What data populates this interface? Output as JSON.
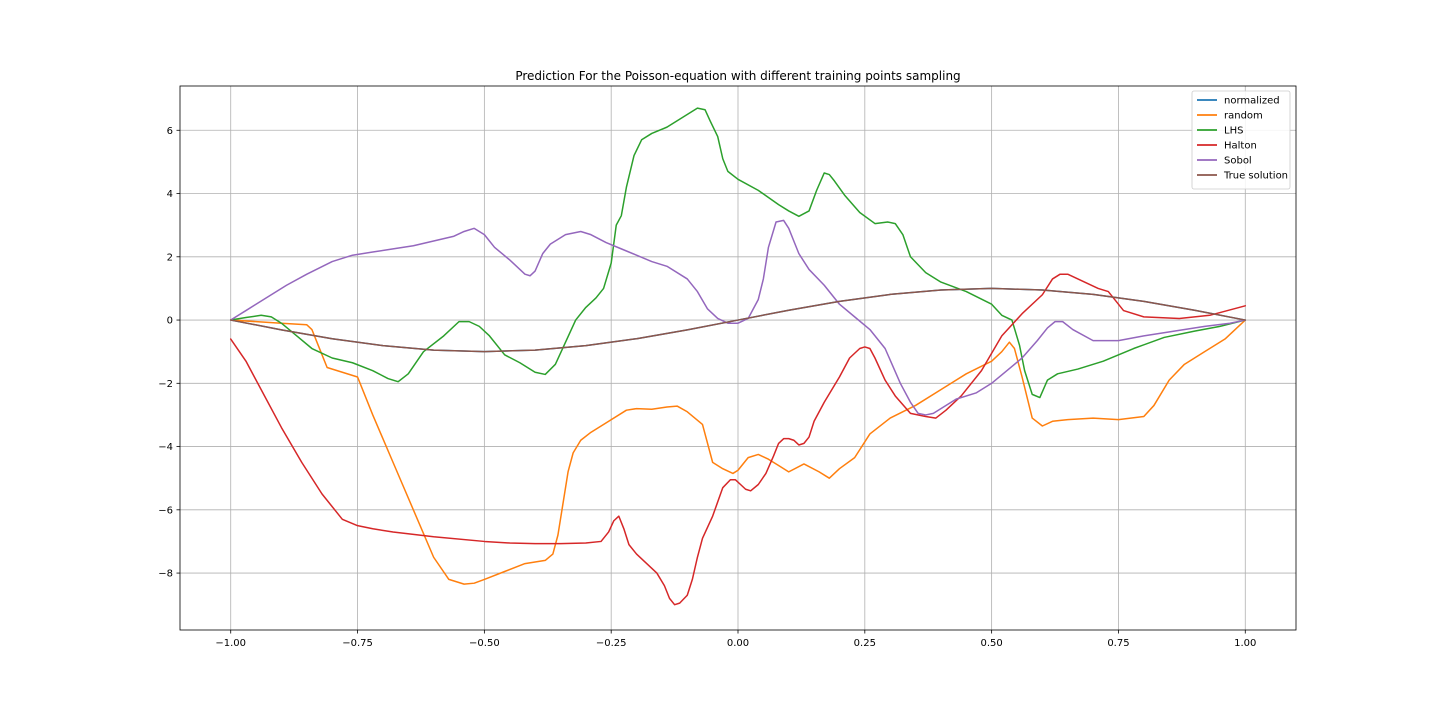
{
  "chart_data": {
    "type": "line",
    "title": "Prediction For the Poisson-equation with different training points sampling",
    "xlabel": "",
    "ylabel": "",
    "xlim": [
      -1.1,
      1.1
    ],
    "ylim": [
      -9.8,
      7.4
    ],
    "xticks": [
      -1.0,
      -0.75,
      -0.5,
      -0.25,
      0.0,
      0.25,
      0.5,
      0.75,
      1.0
    ],
    "xtick_labels": [
      "−1.00",
      "−0.75",
      "−0.50",
      "−0.25",
      "0.00",
      "0.25",
      "0.50",
      "0.75",
      "1.00"
    ],
    "yticks": [
      -8,
      -6,
      -4,
      -2,
      0,
      2,
      4,
      6
    ],
    "ytick_labels": [
      "−8",
      "−6",
      "−4",
      "−2",
      "0",
      "2",
      "4",
      "6"
    ],
    "grid": true,
    "legend_position": "top-right",
    "series": [
      {
        "name": "normalized",
        "color": "#1f77b4",
        "x": [
          -1.0,
          -0.9,
          -0.8,
          -0.7,
          -0.6,
          -0.5,
          -0.4,
          -0.3,
          -0.2,
          -0.1,
          0.0,
          0.1,
          0.2,
          0.3,
          0.4,
          0.5,
          0.6,
          0.7,
          0.8,
          0.9,
          1.0
        ],
        "y": [
          0.0,
          -0.31,
          -0.59,
          -0.81,
          -0.95,
          -1.0,
          -0.95,
          -0.81,
          -0.59,
          -0.31,
          0.0,
          0.31,
          0.59,
          0.81,
          0.95,
          1.0,
          0.95,
          0.81,
          0.59,
          0.31,
          0.0
        ]
      },
      {
        "name": "random",
        "color": "#ff7f0e",
        "x": [
          -1.0,
          -0.95,
          -0.9,
          -0.85,
          -0.84,
          -0.83,
          -0.81,
          -0.78,
          -0.75,
          -0.72,
          -0.68,
          -0.64,
          -0.6,
          -0.57,
          -0.54,
          -0.52,
          -0.5,
          -0.46,
          -0.42,
          -0.38,
          -0.365,
          -0.355,
          -0.345,
          -0.335,
          -0.325,
          -0.31,
          -0.29,
          -0.26,
          -0.22,
          -0.2,
          -0.17,
          -0.14,
          -0.12,
          -0.1,
          -0.07,
          -0.05,
          -0.03,
          -0.01,
          0.0,
          0.02,
          0.04,
          0.06,
          0.08,
          0.1,
          0.13,
          0.16,
          0.18,
          0.2,
          0.23,
          0.26,
          0.3,
          0.35,
          0.4,
          0.45,
          0.5,
          0.52,
          0.535,
          0.545,
          0.56,
          0.58,
          0.6,
          0.62,
          0.65,
          0.7,
          0.75,
          0.8,
          0.82,
          0.85,
          0.88,
          0.92,
          0.96,
          1.0
        ],
        "y": [
          0.0,
          -0.05,
          -0.1,
          -0.15,
          -0.3,
          -0.7,
          -1.5,
          -1.65,
          -1.8,
          -3.0,
          -4.5,
          -6.0,
          -7.5,
          -8.2,
          -8.35,
          -8.32,
          -8.2,
          -7.95,
          -7.7,
          -7.6,
          -7.4,
          -6.8,
          -5.8,
          -4.8,
          -4.2,
          -3.8,
          -3.55,
          -3.25,
          -2.85,
          -2.8,
          -2.82,
          -2.75,
          -2.72,
          -2.9,
          -3.3,
          -4.5,
          -4.7,
          -4.85,
          -4.75,
          -4.35,
          -4.25,
          -4.4,
          -4.6,
          -4.8,
          -4.55,
          -4.8,
          -5.0,
          -4.7,
          -4.35,
          -3.6,
          -3.1,
          -2.7,
          -2.2,
          -1.7,
          -1.3,
          -1.0,
          -0.7,
          -0.9,
          -1.8,
          -3.1,
          -3.35,
          -3.2,
          -3.15,
          -3.1,
          -3.15,
          -3.05,
          -2.7,
          -1.9,
          -1.4,
          -1.0,
          -0.6,
          0.0
        ]
      },
      {
        "name": "LHS",
        "color": "#2ca02c",
        "x": [
          -1.0,
          -0.97,
          -0.94,
          -0.92,
          -0.9,
          -0.87,
          -0.84,
          -0.8,
          -0.76,
          -0.72,
          -0.69,
          -0.67,
          -0.65,
          -0.62,
          -0.58,
          -0.55,
          -0.53,
          -0.51,
          -0.49,
          -0.46,
          -0.43,
          -0.4,
          -0.38,
          -0.36,
          -0.34,
          -0.32,
          -0.3,
          -0.28,
          -0.265,
          -0.25,
          -0.24,
          -0.23,
          -0.22,
          -0.205,
          -0.19,
          -0.17,
          -0.14,
          -0.11,
          -0.08,
          -0.065,
          -0.055,
          -0.04,
          -0.03,
          -0.02,
          0.0,
          0.04,
          0.08,
          0.1,
          0.12,
          0.14,
          0.155,
          0.17,
          0.18,
          0.19,
          0.21,
          0.24,
          0.27,
          0.295,
          0.31,
          0.325,
          0.34,
          0.37,
          0.4,
          0.45,
          0.5,
          0.52,
          0.54,
          0.555,
          0.565,
          0.58,
          0.595,
          0.61,
          0.63,
          0.67,
          0.72,
          0.78,
          0.84,
          0.9,
          0.95,
          1.0
        ],
        "y": [
          0.0,
          0.08,
          0.15,
          0.1,
          -0.1,
          -0.5,
          -0.9,
          -1.2,
          -1.35,
          -1.6,
          -1.85,
          -1.95,
          -1.7,
          -1.0,
          -0.5,
          -0.05,
          -0.05,
          -0.2,
          -0.5,
          -1.1,
          -1.35,
          -1.65,
          -1.72,
          -1.4,
          -0.7,
          0.0,
          0.4,
          0.7,
          1.0,
          1.8,
          3.0,
          3.3,
          4.2,
          5.2,
          5.7,
          5.9,
          6.1,
          6.4,
          6.7,
          6.65,
          6.3,
          5.8,
          5.1,
          4.7,
          4.45,
          4.1,
          3.65,
          3.45,
          3.28,
          3.45,
          4.1,
          4.65,
          4.6,
          4.4,
          3.95,
          3.4,
          3.05,
          3.1,
          3.05,
          2.7,
          2.0,
          1.5,
          1.2,
          0.9,
          0.5,
          0.15,
          0.0,
          -0.8,
          -1.6,
          -2.35,
          -2.45,
          -1.9,
          -1.7,
          -1.55,
          -1.3,
          -0.9,
          -0.55,
          -0.35,
          -0.2,
          0.0
        ]
      },
      {
        "name": "Halton",
        "color": "#d62728",
        "x": [
          -1.0,
          -0.97,
          -0.94,
          -0.9,
          -0.86,
          -0.82,
          -0.78,
          -0.75,
          -0.72,
          -0.68,
          -0.6,
          -0.5,
          -0.45,
          -0.4,
          -0.35,
          -0.3,
          -0.27,
          -0.255,
          -0.245,
          -0.235,
          -0.225,
          -0.215,
          -0.2,
          -0.18,
          -0.16,
          -0.145,
          -0.135,
          -0.125,
          -0.115,
          -0.1,
          -0.09,
          -0.08,
          -0.07,
          -0.05,
          -0.03,
          -0.015,
          -0.005,
          0.005,
          0.015,
          0.025,
          0.04,
          0.055,
          0.07,
          0.08,
          0.09,
          0.1,
          0.11,
          0.12,
          0.13,
          0.14,
          0.15,
          0.17,
          0.2,
          0.22,
          0.24,
          0.25,
          0.26,
          0.27,
          0.29,
          0.31,
          0.34,
          0.37,
          0.39,
          0.41,
          0.44,
          0.48,
          0.52,
          0.56,
          0.6,
          0.62,
          0.635,
          0.65,
          0.67,
          0.71,
          0.73,
          0.76,
          0.8,
          0.87,
          0.93,
          1.0
        ],
        "y": [
          -0.6,
          -1.3,
          -2.2,
          -3.4,
          -4.5,
          -5.5,
          -6.3,
          -6.5,
          -6.6,
          -6.7,
          -6.85,
          -7.0,
          -7.05,
          -7.07,
          -7.07,
          -7.05,
          -7.0,
          -6.7,
          -6.35,
          -6.2,
          -6.6,
          -7.1,
          -7.4,
          -7.7,
          -8.0,
          -8.4,
          -8.8,
          -9.0,
          -8.95,
          -8.7,
          -8.2,
          -7.5,
          -6.9,
          -6.2,
          -5.3,
          -5.05,
          -5.05,
          -5.2,
          -5.35,
          -5.4,
          -5.2,
          -4.85,
          -4.3,
          -3.9,
          -3.75,
          -3.75,
          -3.8,
          -3.95,
          -3.9,
          -3.7,
          -3.2,
          -2.6,
          -1.8,
          -1.2,
          -0.9,
          -0.85,
          -0.9,
          -1.2,
          -1.9,
          -2.4,
          -2.95,
          -3.05,
          -3.1,
          -2.85,
          -2.4,
          -1.6,
          -0.5,
          0.2,
          0.8,
          1.3,
          1.45,
          1.45,
          1.3,
          1.0,
          0.9,
          0.3,
          0.1,
          0.05,
          0.15,
          0.45
        ]
      },
      {
        "name": "Sobol",
        "color": "#9467bd",
        "x": [
          -1.0,
          -0.97,
          -0.93,
          -0.89,
          -0.85,
          -0.8,
          -0.76,
          -0.72,
          -0.68,
          -0.64,
          -0.6,
          -0.56,
          -0.54,
          -0.52,
          -0.5,
          -0.48,
          -0.45,
          -0.42,
          -0.41,
          -0.4,
          -0.385,
          -0.37,
          -0.34,
          -0.31,
          -0.29,
          -0.26,
          -0.23,
          -0.2,
          -0.17,
          -0.14,
          -0.1,
          -0.08,
          -0.06,
          -0.04,
          -0.02,
          0.0,
          0.02,
          0.04,
          0.05,
          0.06,
          0.075,
          0.09,
          0.1,
          0.11,
          0.12,
          0.14,
          0.17,
          0.2,
          0.23,
          0.26,
          0.29,
          0.32,
          0.34,
          0.355,
          0.37,
          0.385,
          0.4,
          0.43,
          0.47,
          0.5,
          0.53,
          0.56,
          0.59,
          0.61,
          0.625,
          0.64,
          0.66,
          0.7,
          0.75,
          0.8,
          0.86,
          0.92,
          0.97,
          1.0
        ],
        "y": [
          0.0,
          0.3,
          0.7,
          1.1,
          1.45,
          1.85,
          2.05,
          2.15,
          2.25,
          2.35,
          2.5,
          2.65,
          2.8,
          2.9,
          2.7,
          2.3,
          1.9,
          1.45,
          1.4,
          1.55,
          2.1,
          2.4,
          2.7,
          2.8,
          2.7,
          2.45,
          2.25,
          2.05,
          1.85,
          1.7,
          1.3,
          0.9,
          0.35,
          0.05,
          -0.1,
          -0.1,
          0.05,
          0.65,
          1.3,
          2.3,
          3.1,
          3.15,
          2.9,
          2.5,
          2.1,
          1.6,
          1.1,
          0.5,
          0.1,
          -0.3,
          -0.9,
          -2.0,
          -2.6,
          -2.95,
          -3.0,
          -2.95,
          -2.8,
          -2.5,
          -2.3,
          -2.0,
          -1.6,
          -1.2,
          -0.65,
          -0.25,
          -0.05,
          -0.05,
          -0.3,
          -0.65,
          -0.65,
          -0.5,
          -0.35,
          -0.2,
          -0.1,
          0.0
        ]
      },
      {
        "name": "True solution",
        "color": "#8c564b",
        "x": [
          -1.0,
          -0.9,
          -0.8,
          -0.7,
          -0.6,
          -0.5,
          -0.4,
          -0.3,
          -0.2,
          -0.1,
          0.0,
          0.1,
          0.2,
          0.3,
          0.4,
          0.5,
          0.6,
          0.7,
          0.8,
          0.9,
          1.0
        ],
        "y": [
          0.0,
          -0.31,
          -0.59,
          -0.81,
          -0.95,
          -1.0,
          -0.95,
          -0.81,
          -0.59,
          -0.31,
          0.0,
          0.31,
          0.59,
          0.81,
          0.95,
          1.0,
          0.95,
          0.81,
          0.59,
          0.31,
          0.0
        ]
      }
    ]
  }
}
